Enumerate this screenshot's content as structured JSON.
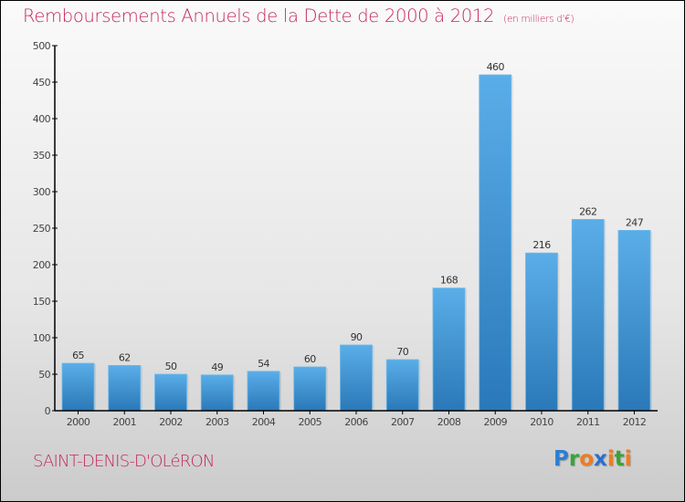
{
  "header": {
    "title": "Remboursements Annuels de la Dette de 2000 à 2012",
    "subtitle": "(en milliers d'€)"
  },
  "footer": {
    "place": "SAINT-DENIS-D'OLéRON",
    "logo": {
      "letters": [
        {
          "char": "P",
          "color": "#2a7fd4"
        },
        {
          "char": "r",
          "color": "#3aa33a"
        },
        {
          "char": "o",
          "color": "#f07c1e"
        },
        {
          "char": "x",
          "color": "#2a6fd0"
        },
        {
          "char": "i",
          "color": "#f07c1e"
        },
        {
          "char": "t",
          "color": "#3aa33a"
        },
        {
          "char": "i",
          "color": "#f07c1e"
        }
      ]
    }
  },
  "colors": {
    "bar_top": "#5aaee8",
    "bar_bottom": "#2a78b8",
    "title": "#c5285a"
  },
  "chart_data": {
    "type": "bar",
    "title": "Remboursements Annuels de la Dette de 2000 à 2012",
    "subtitle": "(en milliers d'€)",
    "xlabel": "",
    "ylabel": "",
    "categories": [
      "2000",
      "2001",
      "2002",
      "2003",
      "2004",
      "2005",
      "2006",
      "2007",
      "2008",
      "2009",
      "2010",
      "2011",
      "2012"
    ],
    "values": [
      65,
      62,
      50,
      49,
      54,
      60,
      90,
      70,
      168,
      460,
      216,
      262,
      247
    ],
    "ylim": [
      0,
      500
    ],
    "yticks": [
      0,
      50,
      100,
      150,
      200,
      250,
      300,
      350,
      400,
      450,
      500
    ],
    "grid": false,
    "legend": "none",
    "data_labels": true
  }
}
